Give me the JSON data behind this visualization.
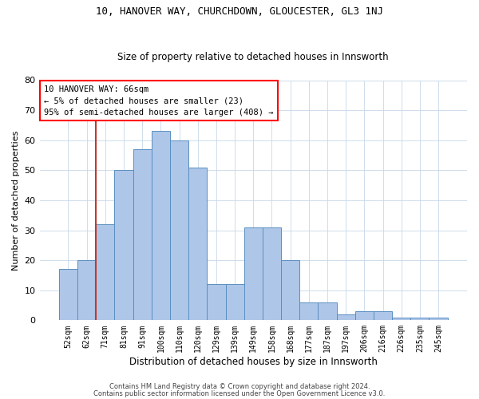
{
  "title1": "10, HANOVER WAY, CHURCHDOWN, GLOUCESTER, GL3 1NJ",
  "title2": "Size of property relative to detached houses in Innsworth",
  "xlabel": "Distribution of detached houses by size in Innsworth",
  "ylabel": "Number of detached properties",
  "bar_labels": [
    "52sqm",
    "62sqm",
    "71sqm",
    "81sqm",
    "91sqm",
    "100sqm",
    "110sqm",
    "120sqm",
    "129sqm",
    "139sqm",
    "149sqm",
    "158sqm",
    "168sqm",
    "177sqm",
    "187sqm",
    "197sqm",
    "206sqm",
    "216sqm",
    "226sqm",
    "235sqm",
    "245sqm"
  ],
  "bar_values": [
    17,
    20,
    32,
    50,
    57,
    63,
    60,
    51,
    12,
    12,
    31,
    31,
    20,
    6,
    6,
    2,
    3,
    3,
    1,
    1,
    1
  ],
  "bar_color": "#aec6e8",
  "bar_edge_color": "#5a8fc0",
  "vline_x": 1.5,
  "vline_color": "#c0392b",
  "annotation_line1": "10 HANOVER WAY: 66sqm",
  "annotation_line2": "← 5% of detached houses are smaller (23)",
  "annotation_line3": "95% of semi-detached houses are larger (408) →",
  "ylim": [
    0,
    80
  ],
  "yticks": [
    0,
    10,
    20,
    30,
    40,
    50,
    60,
    70,
    80
  ],
  "footer1": "Contains HM Land Registry data © Crown copyright and database right 2024.",
  "footer2": "Contains public sector information licensed under the Open Government Licence v3.0.",
  "background_color": "#ffffff",
  "grid_color": "#c8d8e8",
  "title1_fontsize": 9.0,
  "title2_fontsize": 8.5,
  "ylabel_fontsize": 8.0,
  "xlabel_fontsize": 8.5,
  "annot_fontsize": 7.5,
  "footer_fontsize": 6.0,
  "ytick_fontsize": 8.0,
  "xtick_fontsize": 7.0
}
